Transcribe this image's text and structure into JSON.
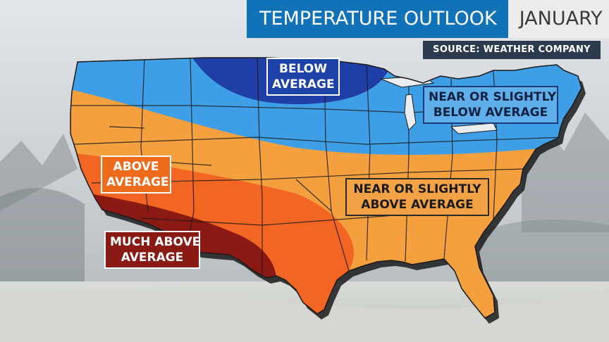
{
  "header": {
    "title": "TEMPERATURE OUTLOOK",
    "month": "JANUARY",
    "source": "SOURCE: WEATHER COMPANY"
  },
  "legend_labels": {
    "below_average": [
      "BELOW",
      "AVERAGE"
    ],
    "near_slightly_below": [
      "NEAR OR SLIGHTLY",
      "BELOW AVERAGE"
    ],
    "above_average": [
      "ABOVE",
      "AVERAGE"
    ],
    "near_slightly_above": [
      "NEAR OR SLIGHTLY",
      "ABOVE AVERAGE"
    ],
    "much_above_average": [
      "MUCH ABOVE",
      "AVERAGE"
    ]
  },
  "colors": {
    "below_average": "#1f3fa6",
    "near_slightly_below": "#3f9fe6",
    "near_slightly_above": "#f5a03f",
    "above_average": "#f26522",
    "much_above_average": "#8b1a14",
    "title_bar": "#1272b8",
    "source_bar": "#2c3a4e"
  }
}
